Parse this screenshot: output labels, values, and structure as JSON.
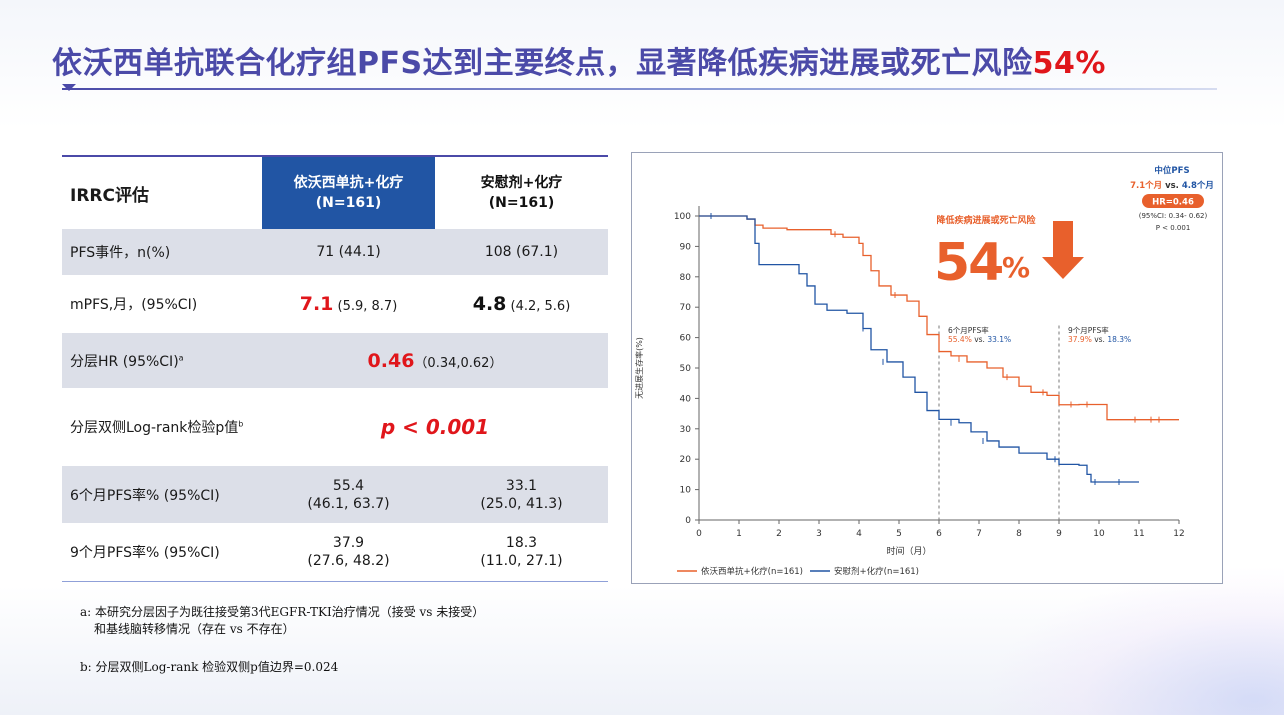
{
  "slide": {
    "title_main": "依沃西单抗联合化疗组PFS达到主要终点，显著降低疾病进展或死亡风险",
    "title_accent": "54%",
    "colors": {
      "title": "#4b4aa8",
      "accent_red": "#e0161b",
      "header_blue": "#2155a4",
      "ivonescimab_line": "#e8602c",
      "placebo_line": "#2155a4"
    }
  },
  "table": {
    "header": {
      "label": "IRRC评估",
      "col1_line1": "依沃西单抗+化疗",
      "col1_line2": "(N=161)",
      "col2_line1": "安慰剂+化疗",
      "col2_line2": "(N=161)"
    },
    "rows": {
      "pfs_events": {
        "label": "PFS事件，n(%)",
        "col1": "71 (44.1)",
        "col2": "108 (67.1)"
      },
      "mpfs": {
        "label": "mPFS,月，(95%CI)",
        "col1_main": "7.1",
        "col1_ci": " (5.9, 8.7)",
        "col2_main": "4.8",
        "col2_ci": " (4.2, 5.6)"
      },
      "hr": {
        "label": "分层HR (95%CI)",
        "sup": "a",
        "value": "0.46",
        "ci": "（0.34,0.62）"
      },
      "logrank": {
        "label": "分层双侧Log-rank检验p值",
        "sup": "b",
        "value": "p < 0.001"
      },
      "pfs6": {
        "label": "6个月PFS率% (95%CI)",
        "col1_l1": "55.4",
        "col1_l2": "(46.1, 63.7)",
        "col2_l1": "33.1",
        "col2_l2": "(25.0, 41.3)"
      },
      "pfs9": {
        "label": "9个月PFS率% (95%CI)",
        "col1_l1": "37.9",
        "col1_l2": "(27.6, 48.2)",
        "col2_l1": "18.3",
        "col2_l2": "(11.0, 27.1)"
      }
    }
  },
  "footnotes": {
    "a_line1": "a: 本研究分层因子为既往接受第3代EGFR-TKI治疗情况（接受 vs 未接受）",
    "a_line2": "和基线脑转移情况（存在 vs 不存在）",
    "b": "b: 分层双侧Log-rank 检验双侧p值边界=0.024"
  },
  "chart_data": {
    "type": "line",
    "subtype": "kaplan-meier",
    "ylabel": "无进展生存率(%)",
    "xlabel": "时间（月）",
    "xlim": [
      0,
      12
    ],
    "ylim": [
      0,
      100
    ],
    "xticks": [
      0,
      1,
      2,
      3,
      4,
      5,
      6,
      7,
      8,
      9,
      10,
      11,
      12
    ],
    "yticks": [
      0,
      10,
      20,
      30,
      40,
      50,
      60,
      70,
      80,
      90,
      100
    ],
    "legend_position": "bottom",
    "series": [
      {
        "name": "依沃西单抗+化疗(n=161)",
        "color": "#e8602c",
        "points": [
          [
            0,
            100
          ],
          [
            0.7,
            100
          ],
          [
            1.2,
            99
          ],
          [
            1.4,
            97
          ],
          [
            1.6,
            96
          ],
          [
            2.2,
            95.5
          ],
          [
            3,
            95.5
          ],
          [
            3.3,
            94
          ],
          [
            3.6,
            93
          ],
          [
            4,
            91
          ],
          [
            4.1,
            87
          ],
          [
            4.3,
            82
          ],
          [
            4.5,
            77
          ],
          [
            4.8,
            74
          ],
          [
            5.2,
            72
          ],
          [
            5.5,
            67
          ],
          [
            5.7,
            61
          ],
          [
            6,
            55.4
          ],
          [
            6.3,
            54
          ],
          [
            6.7,
            52
          ],
          [
            7.2,
            50
          ],
          [
            7.6,
            47
          ],
          [
            8,
            44
          ],
          [
            8.3,
            42
          ],
          [
            8.7,
            41
          ],
          [
            9,
            37.9
          ],
          [
            9.5,
            38
          ],
          [
            10.1,
            38
          ],
          [
            10.2,
            33
          ],
          [
            12,
            33
          ]
        ],
        "censors": [
          [
            0.3,
            100
          ],
          [
            3.4,
            94
          ],
          [
            4.9,
            74
          ],
          [
            6.5,
            53
          ],
          [
            7.7,
            47
          ],
          [
            8.6,
            42
          ],
          [
            9.3,
            38
          ],
          [
            9.7,
            38
          ],
          [
            10.9,
            33
          ],
          [
            11.3,
            33
          ],
          [
            11.5,
            33
          ]
        ]
      },
      {
        "name": "安慰剂+化疗(n=161)",
        "color": "#2155a4",
        "points": [
          [
            0,
            100
          ],
          [
            1.2,
            99
          ],
          [
            1.4,
            91
          ],
          [
            1.5,
            84
          ],
          [
            2,
            84
          ],
          [
            2.5,
            81
          ],
          [
            2.7,
            77
          ],
          [
            2.9,
            71
          ],
          [
            3.2,
            69
          ],
          [
            3.7,
            68
          ],
          [
            4.1,
            63
          ],
          [
            4.3,
            56
          ],
          [
            4.7,
            52
          ],
          [
            5.1,
            47
          ],
          [
            5.4,
            42
          ],
          [
            5.7,
            36
          ],
          [
            6,
            33.1
          ],
          [
            6.5,
            32
          ],
          [
            6.8,
            29
          ],
          [
            7.2,
            26
          ],
          [
            7.5,
            24
          ],
          [
            8,
            22
          ],
          [
            8.7,
            20
          ],
          [
            9,
            18.3
          ],
          [
            9.5,
            18
          ],
          [
            9.7,
            15
          ],
          [
            9.8,
            12.5
          ],
          [
            11,
            12.5
          ]
        ],
        "censors": [
          [
            0.3,
            100
          ],
          [
            4.1,
            63
          ],
          [
            4.6,
            52
          ],
          [
            6.3,
            32
          ],
          [
            7.1,
            26
          ],
          [
            8.9,
            20
          ],
          [
            9.9,
            12.5
          ],
          [
            10.5,
            12.5
          ]
        ]
      }
    ],
    "reference_lines": [
      {
        "x": 6,
        "label_title": "6个月PFS率",
        "val1": "55.4%",
        "vs": " vs. ",
        "val2": "33.1%"
      },
      {
        "x": 9,
        "label_title": "9个月PFS率",
        "val1": "37.9%",
        "vs": " vs. ",
        "val2": "18.3%"
      }
    ],
    "summary_box": {
      "title": "中位PFS",
      "months_text_1": "7.1个月",
      "months_vs": " vs. ",
      "months_text_2": "4.8个月",
      "hr_badge": "HR=0.46",
      "ci": "(95%CI: 0.34- 0.62)",
      "p": "P < 0.001"
    },
    "reduction_callout": {
      "caption": "降低疾病进展或死亡风险",
      "value": "54",
      "unit": "%"
    }
  }
}
